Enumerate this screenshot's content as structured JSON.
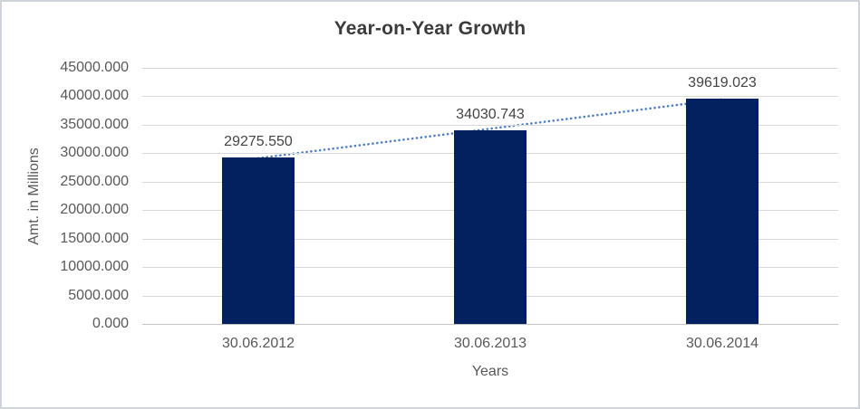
{
  "chart_data": {
    "type": "bar",
    "title": "Year-on-Year Growth",
    "xlabel": "Years",
    "ylabel": "Amt. in Millions",
    "categories": [
      "30.06.2012",
      "30.06.2013",
      "30.06.2014"
    ],
    "values": [
      29275.55,
      34030.743,
      39619.023
    ],
    "data_labels": [
      "29275.550",
      "34030.743",
      "39619.023"
    ],
    "ylim": [
      0,
      45000
    ],
    "ytick_step": 5000,
    "ytick_decimals": 3,
    "grid": true,
    "legend": "none",
    "bar_color": "#03215f",
    "trendline": {
      "type": "linear",
      "style": "dotted",
      "color": "#4d80c0"
    },
    "text_colors": {
      "title": "#3b3b3b",
      "axis_text": "#595959",
      "data_label": "#444444"
    }
  }
}
